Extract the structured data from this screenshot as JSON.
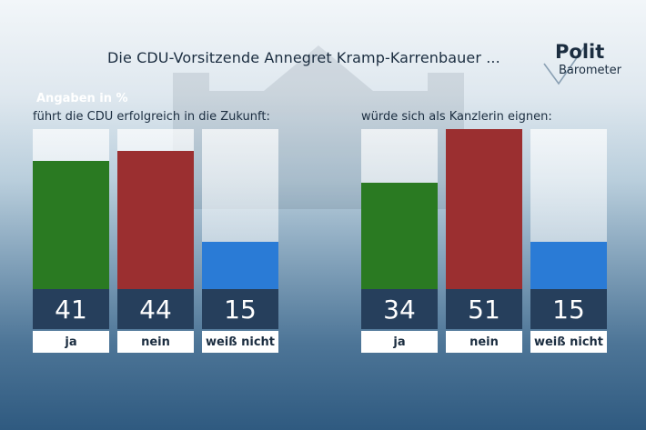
{
  "header": {
    "title": "Die CDU-Vorsitzende Annegret Kramp-Karrenbauer ...",
    "logo_top": "Polit",
    "logo_bottom": "Barometer"
  },
  "unit_label": "Angaben in %",
  "colors": {
    "ja": "#2a7a22",
    "nein": "#9b2f30",
    "weiss_nicht": "#2a7bd6",
    "value_box": "#263f5c"
  },
  "chart_data": [
    {
      "type": "bar",
      "title": "führt die CDU erfolgreich in die Zukunft:",
      "categories": [
        "ja",
        "nein",
        "weiß nicht"
      ],
      "values": [
        41,
        44,
        15
      ],
      "value_labels": [
        "41",
        "44",
        "15"
      ],
      "ylim": [
        0,
        51
      ]
    },
    {
      "type": "bar",
      "title": "würde sich als Kanzlerin eignen:",
      "categories": [
        "ja",
        "nein",
        "weiß nicht"
      ],
      "values": [
        34,
        51,
        15
      ],
      "value_labels": [
        "34",
        "51",
        "15"
      ],
      "ylim": [
        0,
        51
      ]
    }
  ]
}
